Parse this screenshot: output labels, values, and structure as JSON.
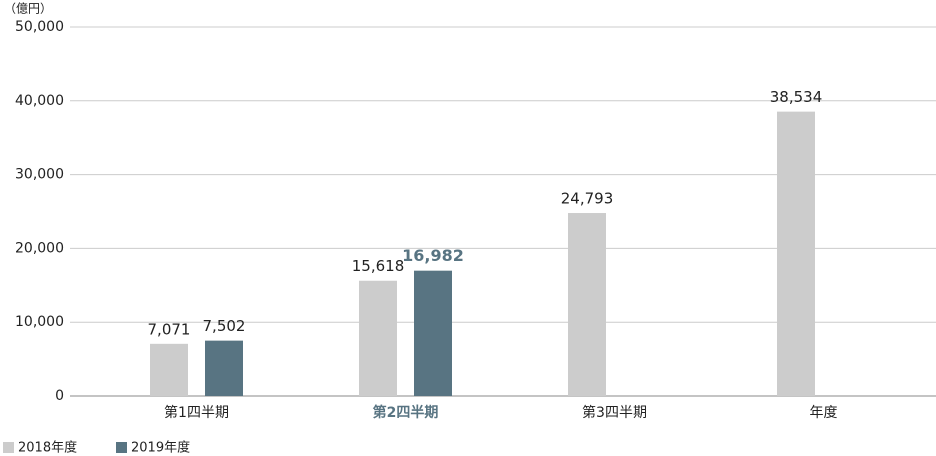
{
  "chart_data": {
    "type": "bar",
    "unit_label": "（億円）",
    "categories": [
      "第1四半期",
      "第2四半期",
      "第3四半期",
      "年度"
    ],
    "series": [
      {
        "name": "2018年度",
        "color": "#cccccc",
        "values": [
          7071,
          15618,
          24793,
          38534
        ],
        "value_labels": [
          "7,071",
          "15,618",
          "24,793",
          "38,534"
        ]
      },
      {
        "name": "2019年度",
        "color": "#587482",
        "values": [
          7502,
          16982,
          null,
          null
        ],
        "value_labels": [
          "7,502",
          "16,982",
          null,
          null
        ]
      }
    ],
    "ylim": [
      0,
      50000
    ],
    "yticks": [
      0,
      {
        "value": 10000,
        "label": "10,000"
      },
      {
        "value": 20000,
        "label": "20,000"
      },
      {
        "value": 30000,
        "label": "30,000"
      },
      {
        "value": 40000,
        "label": "40,000"
      },
      {
        "value": 50000,
        "label": "50,000"
      }
    ],
    "grid": true
  }
}
